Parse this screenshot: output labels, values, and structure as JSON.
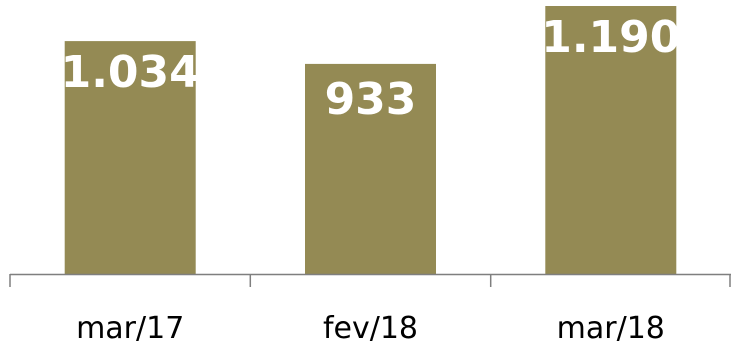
{
  "chart_data": {
    "type": "bar",
    "categories": [
      "mar/17",
      "fev/18",
      "mar/18"
    ],
    "values": [
      1034,
      933,
      1190
    ],
    "value_labels": [
      "1.034",
      "933",
      "1.190"
    ],
    "title": "",
    "xlabel": "",
    "ylabel": "",
    "ylim": [
      0,
      1200
    ],
    "grid": false,
    "legend": "none",
    "bar_color": "#948a54",
    "axis_color": "#7f7f7f",
    "label_color": "#ffffff"
  }
}
